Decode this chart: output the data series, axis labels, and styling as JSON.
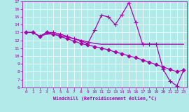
{
  "xlabel": "Windchill (Refroidissement éolien,°C)",
  "xlim": [
    -0.5,
    23.5
  ],
  "ylim": [
    6,
    17
  ],
  "yticks": [
    6,
    7,
    8,
    9,
    10,
    11,
    12,
    13,
    14,
    15,
    16,
    17
  ],
  "xticks": [
    0,
    1,
    2,
    3,
    4,
    5,
    6,
    7,
    8,
    9,
    10,
    11,
    12,
    13,
    14,
    15,
    16,
    17,
    18,
    19,
    20,
    21,
    22,
    23
  ],
  "bg_color": "#b2eaea",
  "grid_color": "#ffffff",
  "line_color": "#aa00aa",
  "lines": [
    {
      "x": [
        0,
        1,
        2,
        3,
        4,
        5,
        6,
        7,
        8,
        9,
        10,
        11,
        12,
        13,
        14,
        15,
        16,
        17,
        18,
        19,
        20,
        21,
        22,
        23
      ],
      "y": [
        13,
        13,
        12.5,
        13,
        12.8,
        12.5,
        12.2,
        11.9,
        11.6,
        11.4,
        11.2,
        11.0,
        10.8,
        10.5,
        10.3,
        10.0,
        9.8,
        9.5,
        9.2,
        8.9,
        8.6,
        8.3,
        8.0,
        8.2
      ],
      "marker": "D",
      "markersize": 2.5,
      "linewidth": 0.9
    },
    {
      "x": [
        0,
        1,
        2,
        3,
        4,
        5,
        6,
        7,
        8,
        9,
        10,
        11,
        12,
        13,
        14,
        15,
        16,
        17,
        18,
        19,
        20,
        21,
        22,
        23
      ],
      "y": [
        13,
        13,
        12.5,
        12.8,
        12.8,
        12.6,
        12.4,
        12.2,
        12.0,
        11.8,
        11.6,
        11.5,
        11.5,
        11.5,
        11.5,
        11.5,
        11.5,
        11.5,
        11.5,
        11.5,
        11.5,
        11.5,
        11.5,
        11.5
      ],
      "marker": null,
      "markersize": 0,
      "linewidth": 0.9
    },
    {
      "x": [
        0,
        1,
        2,
        3,
        4,
        5,
        6,
        7,
        8,
        9,
        10,
        11,
        12,
        13,
        14,
        15,
        16,
        17,
        18,
        19,
        20,
        21,
        22,
        23
      ],
      "y": [
        13,
        13,
        12.5,
        13,
        13.0,
        12.8,
        12.5,
        12.2,
        11.9,
        11.6,
        13.3,
        15.2,
        15.0,
        14.0,
        15.3,
        16.8,
        14.3,
        11.5,
        11.5,
        11.5,
        8.3,
        6.8,
        6.2,
        8.2
      ],
      "marker": "+",
      "markersize": 4,
      "linewidth": 0.9
    }
  ]
}
